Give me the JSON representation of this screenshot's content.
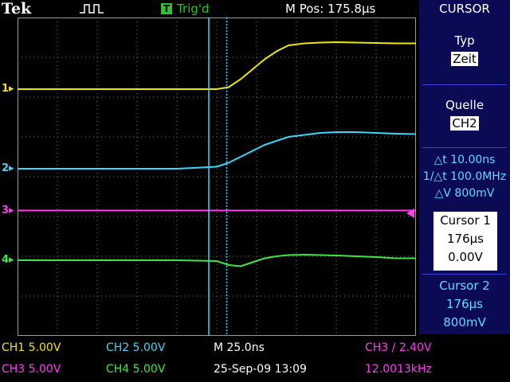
{
  "header": {
    "brand": "Tek",
    "trigger_icon": "T",
    "trigger_state": "Trig'd",
    "m_pos": "M Pos: 175.8µs",
    "menu_title": "CURSOR"
  },
  "menu": {
    "type_label": "Typ",
    "type_value": "Zeit",
    "source_label": "Quelle",
    "source_value": "CH2",
    "delta_t": "△t 10.00ns",
    "inv_delta_t": "1/△t 100.0MHz",
    "delta_v": "△V 800mV",
    "cursor1_label": "Cursor 1",
    "cursor1_time": "176µs",
    "cursor1_volt": "0.00V",
    "cursor2_label": "Cursor 2",
    "cursor2_time": "176µs",
    "cursor2_volt": "800mV"
  },
  "channel_markers": [
    "1",
    "2",
    "3",
    "4"
  ],
  "status": {
    "ch1": "CH1  5.00V",
    "ch2": "CH2  5.00V",
    "time_div": "M 25.0ns",
    "trig_info": "CH3 ∕ 2.40V",
    "ch3": "CH3  5.00V",
    "ch4": "CH4  5.00V",
    "datetime": "25-Sep-09 13:09",
    "frequency": "12.0013kHz"
  },
  "colors": {
    "ch1": "#f0e600",
    "ch2": "#37d7ff",
    "ch3": "#ff3cf0",
    "ch4": "#3fe83f",
    "cursor": "#37d7ff",
    "menu_bg": "#0a0a55"
  },
  "chart_data": {
    "type": "line",
    "xlabel": "",
    "ylabel": "",
    "x": [
      -5,
      -4,
      -3,
      -2,
      -1,
      0,
      0.3,
      0.6,
      0.9,
      1.2,
      1.5,
      1.8,
      2.2,
      2.6,
      3,
      3.5,
      4,
      4.5,
      5
    ],
    "xlim": [
      -5,
      5
    ],
    "ylim": [
      -4,
      4
    ],
    "grid": true,
    "series": [
      {
        "values": [
          2.2,
          2.2,
          2.2,
          2.2,
          2.2,
          2.2,
          2.25,
          2.45,
          2.7,
          2.95,
          3.15,
          3.3,
          3.35,
          3.37,
          3.38,
          3.37,
          3.36,
          3.35,
          3.35
        ]
      },
      {
        "values": [
          0.2,
          0.2,
          0.2,
          0.2,
          0.2,
          0.25,
          0.35,
          0.5,
          0.65,
          0.8,
          0.9,
          1.0,
          1.05,
          1.1,
          1.12,
          1.12,
          1.1,
          1.08,
          1.07
        ]
      },
      {
        "values": [
          -0.85,
          -0.85,
          -0.85,
          -0.85,
          -0.85,
          -0.85,
          -0.85,
          -0.85,
          -0.85,
          -0.85,
          -0.85,
          -0.85,
          -0.85,
          -0.85,
          -0.85,
          -0.85,
          -0.85,
          -0.85,
          -0.85
        ]
      },
      {
        "values": [
          -2.1,
          -2.1,
          -2.1,
          -2.1,
          -2.1,
          -2.12,
          -2.22,
          -2.25,
          -2.15,
          -2.05,
          -2.0,
          -1.97,
          -1.96,
          -1.97,
          -1.98,
          -2.0,
          -2.02,
          -2.05,
          -2.05
        ]
      }
    ],
    "cursors": [
      -0.2,
      0.25
    ],
    "channel_offsets": [
      2.2,
      0.2,
      -0.85,
      -2.1
    ],
    "trigger_level": -0.85
  }
}
